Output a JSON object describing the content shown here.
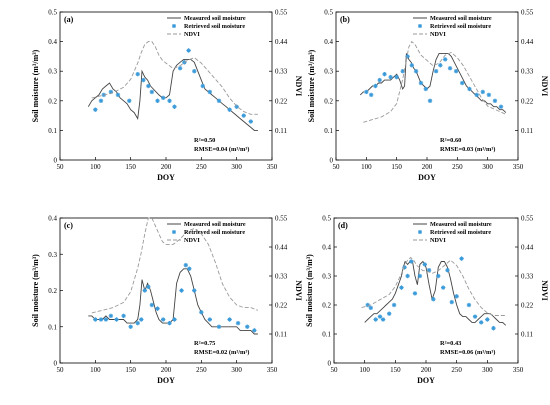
{
  "figure": {
    "legend": {
      "measured": "Measured soil moisture",
      "retrieved": "Retrieved soil moisture",
      "ndvi": "NDVI"
    },
    "xlabel": "DOY",
    "ylabel": "Soil moisture (m³/m³)",
    "y2label": "NDVI",
    "colors": {
      "measured": "#444444",
      "retrieved": "#3a9ad9",
      "ndvi": "#9a9a9a"
    }
  },
  "chart_data": [
    {
      "panel": "(a)",
      "type": "line",
      "xlim": [
        50,
        350
      ],
      "xticks": [
        50,
        100,
        150,
        200,
        250,
        300,
        350
      ],
      "ylim": [
        0,
        0.5
      ],
      "yticks": [
        0,
        0.1,
        0.2,
        0.3,
        0.4,
        0.5
      ],
      "y2lim": [
        0,
        0.55
      ],
      "y2ticks": [
        0.11,
        0.22,
        0.33,
        0.44,
        0.55
      ],
      "grid": false,
      "legend_position": "top-right",
      "stats": [
        "R²=0.50",
        "RMSE=0.04 (m³/m³)"
      ],
      "series": [
        {
          "name": "Measured soil moisture",
          "style": "solid",
          "x": [
            90,
            95,
            100,
            105,
            110,
            115,
            120,
            125,
            130,
            135,
            140,
            145,
            150,
            155,
            160,
            163,
            166,
            170,
            174,
            178,
            182,
            186,
            190,
            195,
            200,
            205,
            210,
            215,
            220,
            225,
            230,
            235,
            240,
            245,
            250,
            255,
            260,
            265,
            270,
            275,
            280,
            285,
            290,
            295,
            300,
            305,
            310,
            315,
            320,
            325,
            330
          ],
          "y": [
            0.18,
            0.2,
            0.21,
            0.22,
            0.24,
            0.25,
            0.26,
            0.24,
            0.23,
            0.21,
            0.2,
            0.19,
            0.17,
            0.16,
            0.14,
            0.2,
            0.3,
            0.28,
            0.27,
            0.25,
            0.24,
            0.23,
            0.22,
            0.21,
            0.21,
            0.22,
            0.3,
            0.32,
            0.33,
            0.34,
            0.34,
            0.34,
            0.33,
            0.3,
            0.27,
            0.24,
            0.23,
            0.22,
            0.21,
            0.2,
            0.19,
            0.18,
            0.17,
            0.16,
            0.15,
            0.14,
            0.13,
            0.12,
            0.11,
            0.1,
            0.1
          ]
        },
        {
          "name": "Retrieved soil moisture",
          "style": "markers",
          "x": [
            100,
            108,
            112,
            122,
            132,
            148,
            160,
            168,
            175,
            180,
            188,
            196,
            205,
            212,
            220,
            226,
            232,
            240,
            252,
            262,
            275,
            290,
            300,
            310,
            320
          ],
          "y": [
            0.17,
            0.2,
            0.22,
            0.23,
            0.22,
            0.2,
            0.29,
            0.27,
            0.25,
            0.23,
            0.2,
            0.21,
            0.2,
            0.18,
            0.31,
            0.33,
            0.37,
            0.3,
            0.25,
            0.23,
            0.2,
            0.17,
            0.18,
            0.15,
            0.13
          ]
        },
        {
          "name": "NDVI",
          "style": "dashed",
          "axis": "right",
          "x": [
            95,
            110,
            125,
            140,
            150,
            160,
            165,
            170,
            175,
            180,
            185,
            190,
            195,
            200,
            210,
            220,
            230,
            240,
            250,
            260,
            270,
            280,
            290,
            300,
            310,
            320,
            330
          ],
          "y": [
            0.23,
            0.24,
            0.25,
            0.27,
            0.3,
            0.36,
            0.4,
            0.43,
            0.44,
            0.44,
            0.42,
            0.39,
            0.37,
            0.36,
            0.34,
            0.35,
            0.37,
            0.38,
            0.36,
            0.33,
            0.3,
            0.27,
            0.23,
            0.2,
            0.18,
            0.17,
            0.17
          ]
        }
      ]
    },
    {
      "panel": "(b)",
      "type": "line",
      "xlim": [
        50,
        350
      ],
      "xticks": [
        50,
        100,
        150,
        200,
        250,
        300,
        350
      ],
      "ylim": [
        0,
        0.5
      ],
      "yticks": [
        0,
        0.1,
        0.2,
        0.3,
        0.4,
        0.5
      ],
      "y2lim": [
        0,
        0.55
      ],
      "y2ticks": [
        0.11,
        0.22,
        0.33,
        0.44,
        0.55
      ],
      "grid": false,
      "legend_position": "top-right",
      "stats": [
        "R²=0.60",
        "RMSE=0.03 (m³/m³)"
      ],
      "series": [
        {
          "name": "Measured soil moisture",
          "style": "solid",
          "x": [
            90,
            95,
            100,
            105,
            110,
            115,
            120,
            125,
            130,
            135,
            140,
            145,
            150,
            155,
            160,
            163,
            166,
            170,
            174,
            178,
            182,
            186,
            190,
            195,
            200,
            205,
            210,
            215,
            220,
            225,
            230,
            235,
            240,
            245,
            250,
            255,
            260,
            265,
            270,
            275,
            280,
            285,
            290,
            295,
            300,
            305,
            310,
            315,
            320,
            325,
            330
          ],
          "y": [
            0.22,
            0.23,
            0.23,
            0.24,
            0.25,
            0.25,
            0.26,
            0.26,
            0.27,
            0.27,
            0.27,
            0.28,
            0.29,
            0.27,
            0.24,
            0.25,
            0.36,
            0.34,
            0.33,
            0.31,
            0.3,
            0.28,
            0.26,
            0.25,
            0.24,
            0.25,
            0.3,
            0.34,
            0.36,
            0.36,
            0.36,
            0.36,
            0.35,
            0.33,
            0.31,
            0.29,
            0.27,
            0.25,
            0.24,
            0.23,
            0.22,
            0.21,
            0.2,
            0.2,
            0.19,
            0.19,
            0.18,
            0.18,
            0.17,
            0.17,
            0.16
          ]
        },
        {
          "name": "Retrieved soil moisture",
          "style": "markers",
          "x": [
            100,
            108,
            115,
            122,
            130,
            140,
            150,
            160,
            168,
            175,
            182,
            190,
            198,
            205,
            215,
            222,
            230,
            238,
            248,
            258,
            270,
            282,
            292,
            302,
            312,
            322
          ],
          "y": [
            0.23,
            0.22,
            0.25,
            0.27,
            0.29,
            0.28,
            0.28,
            0.3,
            0.35,
            0.32,
            0.3,
            0.26,
            0.24,
            0.2,
            0.3,
            0.32,
            0.34,
            0.31,
            0.3,
            0.26,
            0.24,
            0.22,
            0.23,
            0.22,
            0.2,
            0.18
          ]
        },
        {
          "name": "NDVI",
          "style": "dashed",
          "axis": "right",
          "x": [
            95,
            110,
            125,
            140,
            150,
            160,
            165,
            170,
            175,
            180,
            185,
            190,
            195,
            200,
            210,
            220,
            230,
            240,
            250,
            260,
            270,
            280,
            290,
            300,
            310,
            320,
            330
          ],
          "y": [
            0.14,
            0.15,
            0.16,
            0.18,
            0.21,
            0.3,
            0.36,
            0.42,
            0.44,
            0.43,
            0.41,
            0.39,
            0.38,
            0.37,
            0.35,
            0.36,
            0.39,
            0.4,
            0.38,
            0.35,
            0.31,
            0.27,
            0.23,
            0.2,
            0.19,
            0.18,
            0.17
          ]
        }
      ]
    },
    {
      "panel": "(c)",
      "type": "line",
      "xlim": [
        50,
        350
      ],
      "xticks": [
        50,
        100,
        150,
        200,
        250,
        300,
        350
      ],
      "ylim": [
        0,
        0.4
      ],
      "yticks": [
        0,
        0.1,
        0.2,
        0.3,
        0.4
      ],
      "y2lim": [
        0,
        0.55
      ],
      "y2ticks": [
        0.11,
        0.22,
        0.33,
        0.44,
        0.55
      ],
      "grid": false,
      "legend_position": "top-right",
      "stats": [
        "R²=0.75",
        "RMSE=0.02 (m³/m³)"
      ],
      "series": [
        {
          "name": "Measured soil moisture",
          "style": "solid",
          "x": [
            90,
            95,
            100,
            105,
            110,
            115,
            120,
            125,
            130,
            135,
            140,
            145,
            150,
            155,
            160,
            163,
            166,
            170,
            174,
            178,
            182,
            186,
            190,
            195,
            200,
            205,
            210,
            215,
            220,
            225,
            230,
            235,
            240,
            245,
            250,
            255,
            260,
            265,
            270,
            275,
            280,
            285,
            290,
            295,
            300,
            305,
            310,
            315,
            320,
            325,
            330
          ],
          "y": [
            0.13,
            0.13,
            0.12,
            0.12,
            0.12,
            0.13,
            0.12,
            0.12,
            0.12,
            0.12,
            0.12,
            0.11,
            0.11,
            0.11,
            0.12,
            0.16,
            0.23,
            0.2,
            0.22,
            0.2,
            0.17,
            0.14,
            0.12,
            0.11,
            0.11,
            0.11,
            0.12,
            0.22,
            0.25,
            0.26,
            0.26,
            0.24,
            0.2,
            0.16,
            0.14,
            0.12,
            0.11,
            0.1,
            0.1,
            0.1,
            0.1,
            0.1,
            0.1,
            0.1,
            0.1,
            0.09,
            0.09,
            0.09,
            0.09,
            0.08,
            0.08
          ]
        },
        {
          "name": "Retrieved soil moisture",
          "style": "markers",
          "x": [
            100,
            108,
            115,
            122,
            130,
            140,
            150,
            160,
            165,
            170,
            175,
            180,
            188,
            196,
            205,
            212,
            222,
            228,
            233,
            240,
            250,
            262,
            275,
            290,
            302,
            315,
            325
          ],
          "y": [
            0.12,
            0.12,
            0.12,
            0.13,
            0.12,
            0.13,
            0.1,
            0.11,
            0.12,
            0.2,
            0.21,
            0.16,
            0.15,
            0.12,
            0.11,
            0.12,
            0.2,
            0.27,
            0.26,
            0.2,
            0.14,
            0.12,
            0.1,
            0.12,
            0.11,
            0.1,
            0.09
          ]
        },
        {
          "name": "NDVI",
          "style": "dashed",
          "axis": "right",
          "x": [
            95,
            110,
            125,
            140,
            150,
            160,
            165,
            170,
            175,
            180,
            185,
            190,
            195,
            200,
            210,
            220,
            230,
            240,
            250,
            260,
            270,
            280,
            290,
            300,
            310,
            320,
            330
          ],
          "y": [
            0.19,
            0.2,
            0.21,
            0.23,
            0.27,
            0.36,
            0.42,
            0.49,
            0.55,
            0.55,
            0.52,
            0.49,
            0.46,
            0.45,
            0.45,
            0.47,
            0.5,
            0.51,
            0.49,
            0.45,
            0.38,
            0.3,
            0.25,
            0.22,
            0.21,
            0.21,
            0.2
          ]
        }
      ]
    },
    {
      "panel": "(d)",
      "type": "line",
      "xlim": [
        50,
        350
      ],
      "xticks": [
        50,
        100,
        150,
        200,
        250,
        300,
        350
      ],
      "ylim": [
        0,
        0.5
      ],
      "yticks": [
        0,
        0.1,
        0.2,
        0.3,
        0.4,
        0.5
      ],
      "y2lim": [
        0,
        0.55
      ],
      "y2ticks": [
        0.11,
        0.22,
        0.33,
        0.44,
        0.55
      ],
      "grid": false,
      "legend_position": "top-right",
      "stats": [
        "R²=0.43",
        "RMSE=0.06 (m³/m³)"
      ],
      "series": [
        {
          "name": "Measured soil moisture",
          "style": "solid",
          "x": [
            100,
            105,
            110,
            115,
            120,
            125,
            130,
            135,
            140,
            145,
            150,
            155,
            160,
            163,
            166,
            170,
            174,
            178,
            182,
            186,
            190,
            195,
            200,
            205,
            210,
            215,
            220,
            225,
            230,
            235,
            240,
            245,
            250,
            255,
            260,
            265,
            270,
            275,
            280,
            285,
            290,
            295,
            300,
            305,
            310,
            315,
            320,
            325,
            330
          ],
          "y": [
            0.14,
            0.15,
            0.16,
            0.17,
            0.17,
            0.18,
            0.19,
            0.2,
            0.21,
            0.22,
            0.24,
            0.27,
            0.3,
            0.33,
            0.35,
            0.34,
            0.35,
            0.35,
            0.3,
            0.27,
            0.34,
            0.35,
            0.33,
            0.27,
            0.22,
            0.25,
            0.33,
            0.35,
            0.35,
            0.33,
            0.29,
            0.24,
            0.2,
            0.17,
            0.16,
            0.16,
            0.15,
            0.14,
            0.14,
            0.15,
            0.16,
            0.17,
            0.17,
            0.17,
            0.16,
            0.15,
            0.14,
            0.14,
            0.13
          ]
        },
        {
          "name": "Retrieved soil moisture",
          "style": "markers",
          "x": [
            105,
            110,
            118,
            125,
            130,
            140,
            148,
            160,
            165,
            170,
            176,
            182,
            190,
            198,
            205,
            212,
            220,
            228,
            235,
            242,
            250,
            258,
            270,
            280,
            290,
            300,
            310
          ],
          "y": [
            0.2,
            0.19,
            0.15,
            0.16,
            0.15,
            0.17,
            0.2,
            0.26,
            0.33,
            0.3,
            0.35,
            0.24,
            0.3,
            0.34,
            0.32,
            0.22,
            0.3,
            0.26,
            0.32,
            0.21,
            0.23,
            0.36,
            0.2,
            0.16,
            0.14,
            0.15,
            0.12
          ]
        },
        {
          "name": "NDVI",
          "style": "dashed",
          "axis": "right",
          "x": [
            95,
            110,
            125,
            140,
            150,
            160,
            165,
            170,
            175,
            180,
            185,
            190,
            195,
            200,
            210,
            220,
            230,
            240,
            250,
            260,
            270,
            280,
            290,
            300,
            310,
            320,
            330
          ],
          "y": [
            0.21,
            0.22,
            0.24,
            0.26,
            0.29,
            0.34,
            0.37,
            0.39,
            0.4,
            0.39,
            0.37,
            0.36,
            0.35,
            0.35,
            0.34,
            0.35,
            0.37,
            0.39,
            0.37,
            0.33,
            0.28,
            0.24,
            0.21,
            0.19,
            0.18,
            0.18,
            0.18
          ]
        }
      ]
    }
  ]
}
